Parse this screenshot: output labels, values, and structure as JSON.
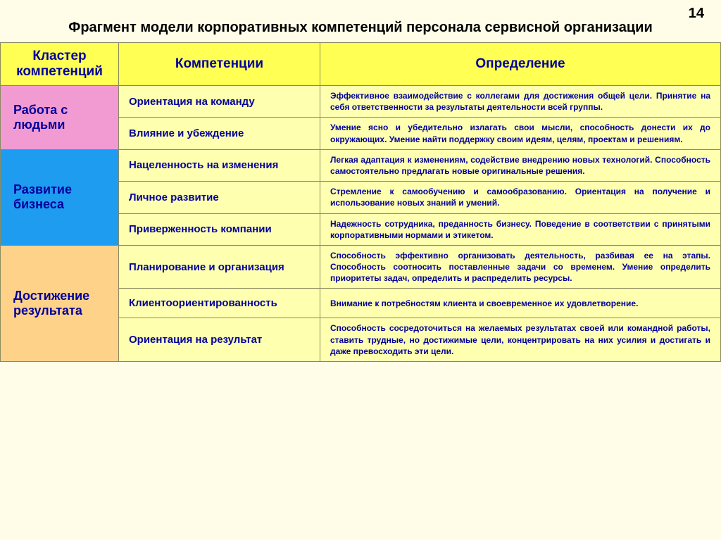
{
  "page_number": "14",
  "title": "Фрагмент модели корпоративных компетенций персонала сервисной организации",
  "headers": {
    "cluster": "Кластер компетенций",
    "competence": "Компетенции",
    "definition": "Определение"
  },
  "colors": {
    "bg_page": "#fffde8",
    "bg_header": "#ffff54",
    "bg_cell": "#ffffb0",
    "cluster1": "#f29ad2",
    "cluster2": "#1e9cf0",
    "cluster3": "#ffd28a",
    "text_blue": "#00009c",
    "border": "#8a8a60"
  },
  "clusters": [
    {
      "name": "Работа с людьми",
      "color": "#f29ad2",
      "rows": [
        {
          "competence": "Ориентация на команду",
          "definition": "Эффективное взаимодействие с коллегами для достижения общей цели. Принятие на себя ответственности за результаты деятельности всей группы."
        },
        {
          "competence": "Влияние и убеждение",
          "definition": "Умение ясно и убедительно излагать свои мысли, способность донести их до окружающих. Умение найти поддержку своим идеям, целям, проектам и решениям."
        }
      ]
    },
    {
      "name": "Развитие бизнеса",
      "color": "#1e9cf0",
      "rows": [
        {
          "competence": "Нацеленность на изменения",
          "definition": "Легкая адаптация к изменениям, содействие внедрению новых технологий. Способность самостоятельно предлагать новые оригинальные решения."
        },
        {
          "competence": "Личное развитие",
          "definition": "Стремление к самообучению и самообразованию. Ориентация на получение и использование новых знаний и умений."
        },
        {
          "competence": "Приверженность компании",
          "definition": "Надежность сотрудника, преданность бизнесу. Поведение в соответствии с принятыми корпоративными нормами и этикетом."
        }
      ]
    },
    {
      "name": "Достижение результата",
      "color": "#ffd28a",
      "rows": [
        {
          "competence": "Планирование и организация",
          "definition": "Способность эффективно организовать деятельность, разбивая ее на этапы. Способность соотносить поставленные задачи со временем. Умение определить приоритеты задач, определить и распределить ресурсы."
        },
        {
          "competence": "Клиентоориентированность",
          "definition": "Внимание к потребностям клиента и своевременное их удовлетворение."
        },
        {
          "competence": "Ориентация на результат",
          "definition": "Способность сосредоточиться на желаемых результатах своей или командной работы, ставить трудные, но достижимые цели, концентрировать на них усилия и достигать и даже превосходить эти цели."
        }
      ]
    }
  ]
}
